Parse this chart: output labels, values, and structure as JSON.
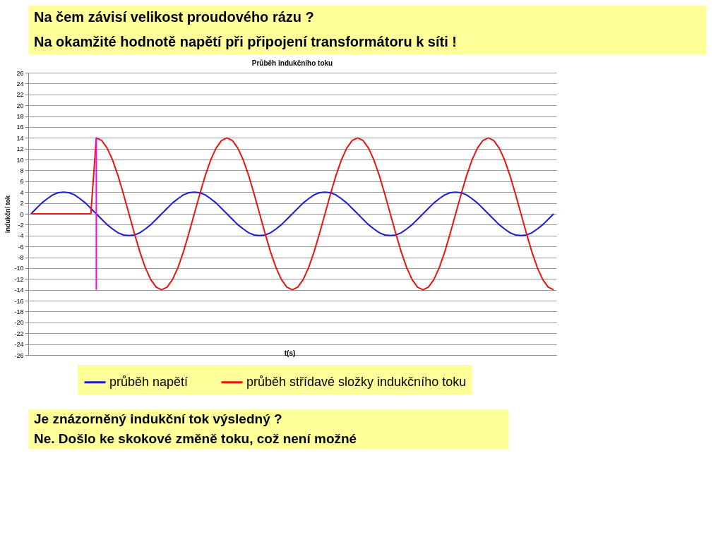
{
  "chart_data": {
    "type": "line",
    "title": "Průběh indukčního toku",
    "xlabel": "t(s)",
    "ylabel": "indukční tok",
    "annotations": [
      "Na čem závisí velikost proudového rázu ?",
      "Na okamžité hodnotě napětí při připojení transformátoru k síti !",
      "Je znázorněný indukční tok výsledný ?",
      "Ne. Došlo ke skokové změně toku, což není možné"
    ],
    "categories": [
      null,
      null,
      null,
      null,
      null,
      null,
      null,
      null,
      null,
      null,
      null,
      null,
      null,
      null,
      null,
      null,
      null,
      null,
      null,
      null,
      null,
      null,
      null,
      null,
      null,
      null,
      null,
      null,
      null,
      null,
      null,
      null,
      null,
      null,
      null,
      null,
      null,
      null,
      null,
      null,
      null,
      null,
      null,
      null,
      null,
      null,
      null,
      null,
      null,
      null,
      null,
      null,
      null,
      null,
      null,
      null,
      null,
      null,
      null,
      null,
      null,
      null,
      null,
      null,
      null,
      null,
      null,
      null,
      null,
      null,
      null,
      null,
      null,
      null,
      null,
      null,
      null,
      null,
      null,
      null,
      null,
      null,
      null,
      null,
      null,
      null,
      null,
      null,
      null,
      null,
      null,
      null,
      null,
      null,
      null,
      null,
      null
    ],
    "ylim": [
      -26,
      26
    ],
    "yticks": [
      -26,
      -24,
      -22,
      -20,
      -18,
      -16,
      -14,
      -12,
      -10,
      -8,
      -6,
      -4,
      -2,
      0,
      2,
      4,
      6,
      8,
      10,
      12,
      14,
      16,
      18,
      20,
      22,
      24,
      26
    ],
    "tick_labels": "y",
    "grid": "y",
    "legend": "bottom",
    "series": [
      {
        "name": "průběh napětí",
        "color": "#1a1ad8",
        "values": [
          0,
          1,
          2,
          2.8,
          3.5,
          3.9,
          4,
          3.9,
          3.5,
          2.8,
          2,
          1,
          0,
          -1,
          -2,
          -2.8,
          -3.5,
          -3.9,
          -4,
          -3.9,
          -3.5,
          -2.8,
          -2,
          -1,
          0,
          1,
          2,
          2.8,
          3.5,
          3.9,
          4,
          3.9,
          3.5,
          2.8,
          2,
          1,
          0,
          -1,
          -2,
          -2.8,
          -3.5,
          -3.9,
          -4,
          -3.9,
          -3.5,
          -2.8,
          -2,
          -1,
          0,
          1,
          2,
          2.8,
          3.5,
          3.9,
          4,
          3.9,
          3.5,
          2.8,
          2,
          1,
          0,
          -1,
          -2,
          -2.8,
          -3.5,
          -3.9,
          -4,
          -3.9,
          -3.5,
          -2.8,
          -2,
          -1,
          0,
          1,
          2,
          2.8,
          3.5,
          3.9,
          4,
          3.9,
          3.5,
          2.8,
          2,
          1,
          0,
          -1,
          -2,
          -2.8,
          -3.5,
          -3.9,
          -4,
          -3.9,
          -3.5,
          -2.8,
          -2,
          -1,
          0
        ]
      },
      {
        "name": "průběh střídavé složky indukčního toku",
        "color": "#ee1111",
        "values": [
          0,
          0,
          0,
          0,
          0,
          0,
          0,
          0,
          0,
          0,
          0,
          0,
          14,
          13.5,
          12.1,
          9.9,
          7,
          3.6,
          0,
          -3.6,
          -7,
          -9.9,
          -12.1,
          -13.5,
          -14,
          -13.5,
          -12.1,
          -9.9,
          -7,
          -3.6,
          0,
          3.6,
          7,
          9.9,
          12.1,
          13.5,
          14,
          13.5,
          12.1,
          9.9,
          7,
          3.6,
          0,
          -3.6,
          -7,
          -9.9,
          -12.1,
          -13.5,
          -14,
          -13.5,
          -12.1,
          -9.9,
          -7,
          -3.6,
          0,
          3.6,
          7,
          9.9,
          12.1,
          13.5,
          14,
          13.5,
          12.1,
          9.9,
          7,
          3.6,
          0,
          -3.6,
          -7,
          -9.9,
          -12.1,
          -13.5,
          -14,
          -13.5,
          -12.1,
          -9.9,
          -7,
          -3.6,
          0,
          3.6,
          7,
          9.9,
          12.1,
          13.5,
          14,
          13.5,
          12.1,
          9.9,
          7,
          3.6,
          0,
          -3.6,
          -7,
          -9.9,
          -12.1,
          -13.5,
          -14
        ]
      }
    ]
  }
}
